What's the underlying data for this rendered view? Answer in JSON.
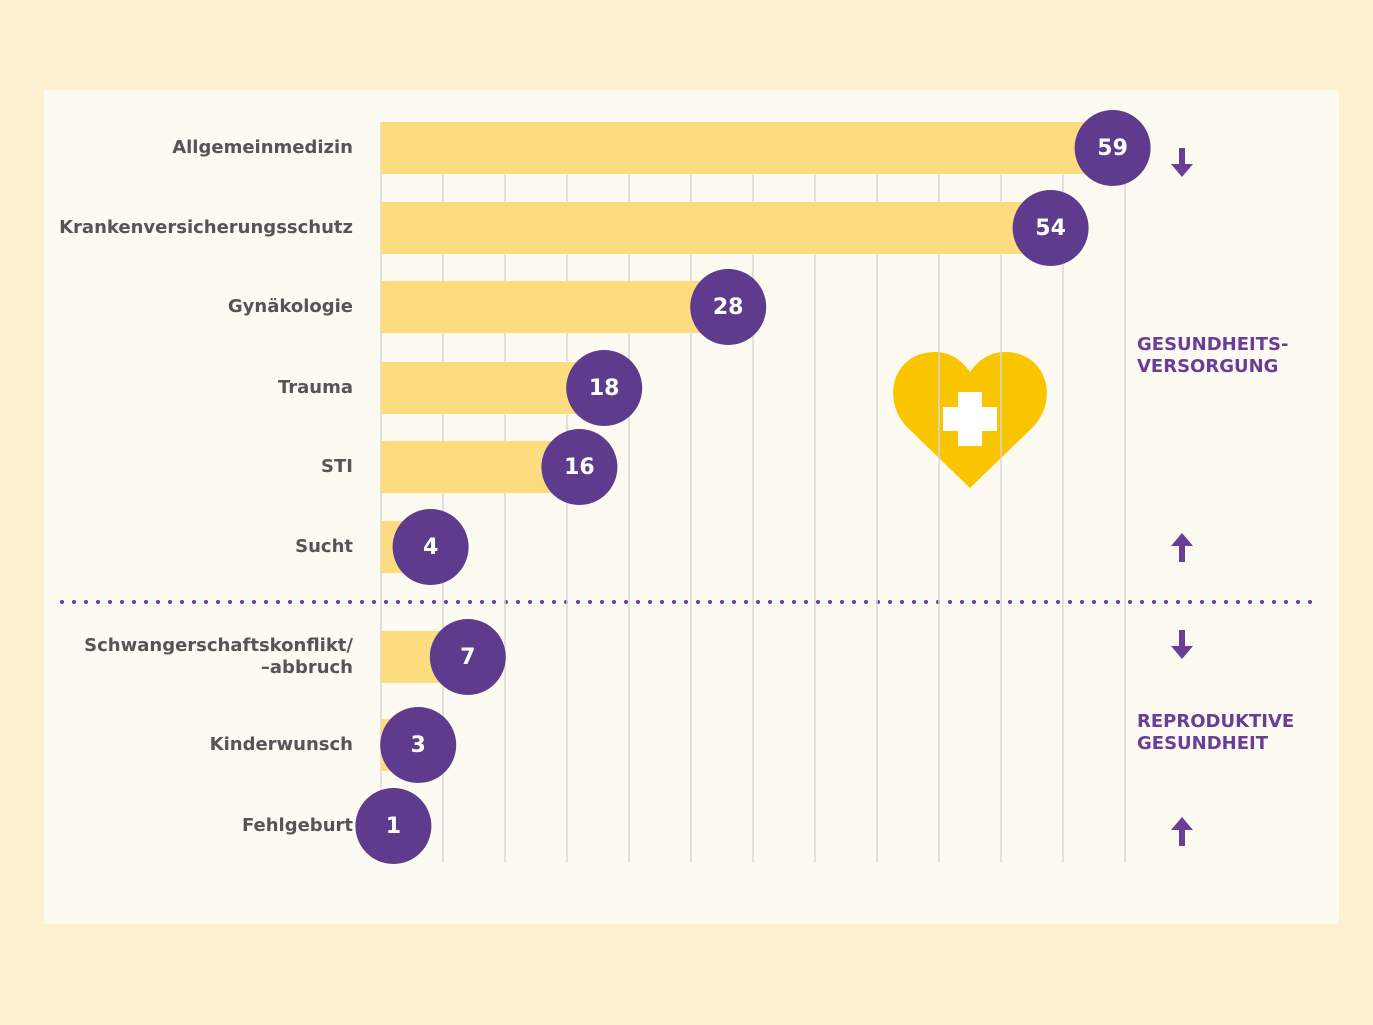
{
  "chart_data": {
    "type": "bar",
    "orientation": "horizontal",
    "categories": [
      "Allgemeinmedizin",
      "Krankenversicherungsschutz",
      "Gynäkologie",
      "Trauma",
      "STI",
      "Sucht",
      "Schwangerschaftskonflikt/\n–abbruch",
      "Kinderwunsch",
      "Fehlgeburt"
    ],
    "values": [
      59,
      54,
      28,
      18,
      16,
      4,
      7,
      3,
      1
    ],
    "color": "#fddc80",
    "label_color": "#5e3b8c",
    "xlim": [
      0,
      60
    ],
    "xticks": [
      0,
      5,
      10,
      15,
      20,
      25,
      30,
      35,
      40,
      45,
      50,
      55,
      60
    ],
    "grid": true,
    "annotations": [
      "GESUNDHEITS-\nVERSORGUNG",
      "REPRODUKTIVE\nGESUNDHEIT"
    ]
  }
}
